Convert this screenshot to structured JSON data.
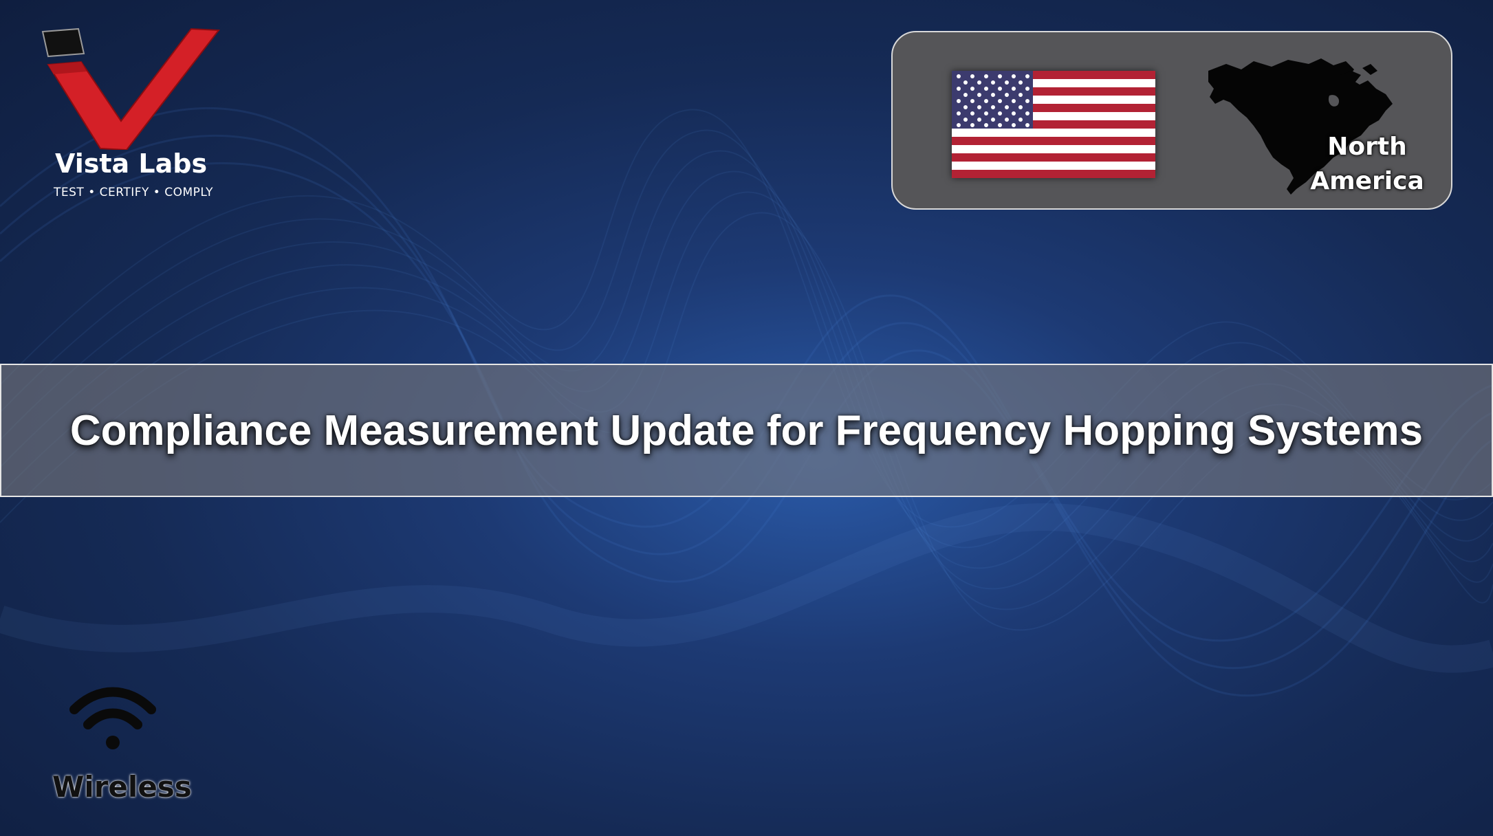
{
  "brand": {
    "name": "Vista Labs",
    "tagline": "TEST • CERTIFY • COMPLY",
    "logo_icon": "checkmark-v-logo",
    "accent_color": "#d42027"
  },
  "region": {
    "flag_icon": "us-flag-icon",
    "map_icon": "north-america-map-icon",
    "label_line1": "North",
    "label_line2": "America"
  },
  "title": "Compliance Measurement Update for Frequency Hopping Systems",
  "category": {
    "icon": "wifi-icon",
    "label": "Wireless"
  }
}
